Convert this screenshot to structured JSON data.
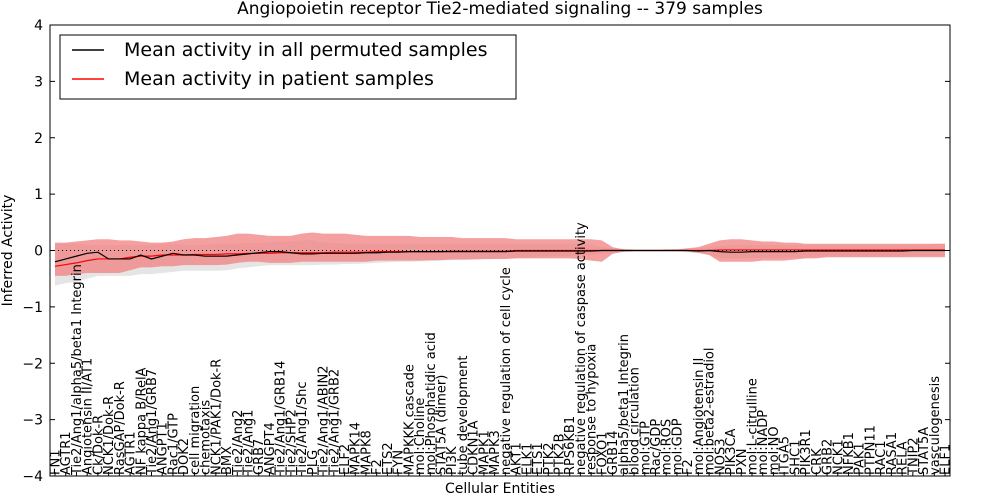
{
  "chart_data": {
    "type": "line",
    "title": "Angiopoietin receptor Tie2-mediated signaling -- 379 samples",
    "xlabel": "Cellular Entities",
    "ylabel": "Inferred Activity",
    "ylim": [
      -4,
      4
    ],
    "yticks": [
      -4,
      -3,
      -2,
      -1,
      0,
      1,
      2,
      3,
      4
    ],
    "zero_line": 0,
    "legend": {
      "position": "top-left",
      "entries": [
        {
          "label": "Mean activity in all permuted samples",
          "color": "#000000"
        },
        {
          "label": "Mean activity in patient samples",
          "color": "#ff0000"
        }
      ]
    },
    "colors": {
      "permuted_band": "#d3d3d3",
      "patient_band": "#f08080",
      "permuted_line": "#000000",
      "patient_line": "#ff0000"
    },
    "categories": [
      "FN1",
      "AGTR1",
      "Tie2/Ang1/alpha5/beta1 Integrin",
      "Angiotensin II/AT1",
      "Ck/Dok-R",
      "NCK1/Dok-R",
      "RasGAP/Dok-R",
      "AGTR1",
      "NF kappa B/RelA",
      "Tie2/Ang1/GRB7",
      "ANGPT1",
      "Rac1/GTP",
      "DOK2",
      "cell migration",
      "chemotaxis",
      "NCK1/PAK1/Dok-R",
      "BMX",
      "Tie2/Ang2",
      "Tie2/Ang1",
      "GRB7",
      "ANGPT4",
      "Tie2/Ang1/GRB14",
      "Tie2/SHP2",
      "Tie2/Ang1/Shc",
      "PLG",
      "Tie2/Ang1/ABIN2",
      "Tie2/Ang1/GRB2",
      "ELF2",
      "MAPK14",
      "MAPK8",
      "F2",
      "ETS2",
      "FYN",
      "MAPKKK cascade",
      "mol:Choline",
      "mol:Phosphatidic acid",
      "STAT5A (dimer)",
      "PI3K",
      "tube development",
      "CDKN1A",
      "MAPK1",
      "MAPK3",
      "negative regulation of cell cycle",
      "AKT1",
      "ELK1",
      "ETS1",
      "PTK2",
      "PTK2B",
      "RPS6KB1",
      "negative regulation of caspase activity",
      "response to hypoxia",
      "FOXO1",
      "GRB14",
      "alpha5/beta1 Integrin",
      "blood circulation",
      "mol:GTP",
      "Rac/GDP",
      "mol:ROS",
      "mol:GDP",
      "F2",
      "mol:Angiotensin II",
      "mol:beta2-estradiol",
      "NOS3",
      "PIK3CA",
      "PXN",
      "mol:L-citrulline",
      "mol:NADP",
      "mol:NO",
      "ITGA5",
      "SHC1",
      "PIK3R1",
      "CRK",
      "GRB2",
      "NCK1",
      "NFKB1",
      "PAK1",
      "PTPN11",
      "RAC1",
      "RASA1",
      "RELA",
      "TNIP2",
      "STAT5A",
      "vasculogenesis",
      "ELF1"
    ],
    "series": [
      {
        "name": "Mean activity in all permuted samples",
        "band": "permuted",
        "values": [
          -0.2,
          -0.15,
          -0.1,
          -0.05,
          -0.03,
          -0.15,
          -0.15,
          -0.15,
          -0.08,
          -0.15,
          -0.1,
          -0.05,
          -0.08,
          -0.08,
          -0.1,
          -0.1,
          -0.1,
          -0.08,
          -0.06,
          -0.04,
          -0.02,
          -0.02,
          -0.04,
          -0.06,
          -0.06,
          -0.05,
          -0.05,
          -0.05,
          -0.05,
          -0.04,
          -0.04,
          -0.03,
          -0.03,
          -0.02,
          -0.02,
          -0.02,
          -0.02,
          -0.02,
          -0.02,
          -0.02,
          -0.02,
          -0.02,
          -0.02,
          -0.01,
          -0.01,
          -0.01,
          -0.01,
          -0.01,
          -0.01,
          -0.01,
          -0.01,
          0,
          0,
          0,
          0,
          0,
          0,
          0,
          0,
          0,
          -0.01,
          0,
          -0.02,
          -0.03,
          -0.03,
          -0.02,
          -0.02,
          -0.02,
          -0.02,
          -0.02,
          -0.01,
          -0.01,
          -0.01,
          -0.01,
          -0.01,
          -0.01,
          -0.01,
          -0.01,
          -0.01,
          -0.01,
          0,
          0,
          0,
          0
        ],
        "lower": [
          -0.62,
          -0.58,
          -0.55,
          -0.5,
          -0.45,
          -0.45,
          -0.45,
          -0.45,
          -0.42,
          -0.42,
          -0.4,
          -0.38,
          -0.36,
          -0.36,
          -0.36,
          -0.36,
          -0.35,
          -0.32,
          -0.3,
          -0.28,
          -0.26,
          -0.26,
          -0.26,
          -0.26,
          -0.26,
          -0.25,
          -0.25,
          -0.24,
          -0.24,
          -0.23,
          -0.22,
          -0.21,
          -0.2,
          -0.2,
          -0.19,
          -0.19,
          -0.18,
          -0.17,
          -0.17,
          -0.16,
          -0.16,
          -0.15,
          -0.14,
          -0.13,
          -0.12,
          -0.11,
          -0.1,
          -0.1,
          -0.1,
          -0.1,
          -0.08,
          -0.06,
          -0.04,
          -0.03,
          -0.02,
          -0.02,
          -0.02,
          -0.02,
          -0.02,
          -0.03,
          -0.05,
          -0.08,
          -0.13,
          -0.14,
          -0.14,
          -0.13,
          -0.13,
          -0.13,
          -0.13,
          -0.12,
          -0.12,
          -0.11,
          -0.11,
          -0.11,
          -0.11,
          -0.11,
          -0.11,
          -0.11,
          -0.11,
          -0.11,
          -0.1,
          -0.1,
          -0.1,
          -0.1
        ],
        "upper": [
          0.12,
          0.12,
          0.12,
          0.1,
          0.1,
          0.1,
          0.1,
          0.1,
          0.1,
          0.1,
          0.12,
          0.12,
          0.1,
          0.1,
          0.1,
          0.12,
          0.12,
          0.12,
          0.14,
          0.14,
          0.14,
          0.16,
          0.16,
          0.18,
          0.18,
          0.14,
          0.14,
          0.12,
          0.12,
          0.12,
          0.12,
          0.12,
          0.12,
          0.12,
          0.12,
          0.12,
          0.12,
          0.12,
          0.12,
          0.12,
          0.12,
          0.12,
          0.12,
          0.12,
          0.12,
          0.12,
          0.12,
          0.12,
          0.12,
          0.12,
          0.1,
          0.06,
          0.04,
          0.03,
          0.02,
          0.02,
          0.02,
          0.02,
          0.02,
          0.03,
          0.04,
          0.06,
          0.08,
          0.09,
          0.1,
          0.1,
          0.1,
          0.1,
          0.1,
          0.1,
          0.1,
          0.1,
          0.1,
          0.1,
          0.1,
          0.1,
          0.1,
          0.1,
          0.1,
          0.1,
          0.1,
          0.1,
          0.12,
          0.12
        ]
      },
      {
        "name": "Mean activity in patient samples",
        "band": "patient",
        "values": [
          -0.28,
          -0.25,
          -0.22,
          -0.18,
          -0.15,
          -0.15,
          -0.15,
          -0.12,
          -0.1,
          -0.1,
          -0.08,
          -0.08,
          -0.08,
          -0.07,
          -0.07,
          -0.07,
          -0.06,
          -0.06,
          -0.05,
          -0.05,
          -0.05,
          -0.04,
          -0.04,
          -0.04,
          -0.04,
          -0.04,
          -0.03,
          -0.03,
          -0.03,
          -0.03,
          -0.02,
          -0.02,
          -0.02,
          -0.02,
          -0.02,
          -0.02,
          -0.02,
          -0.01,
          -0.01,
          -0.01,
          -0.01,
          -0.01,
          -0.01,
          0,
          0,
          0,
          0,
          0,
          0,
          0,
          0,
          0,
          0,
          0,
          0,
          0,
          0,
          0,
          0,
          0,
          0,
          0,
          0.01,
          0.01,
          0.01,
          0.01,
          0.01,
          0.01,
          0.01,
          0.01,
          0.01,
          0.01,
          0.01,
          0.01,
          0.01,
          0.01,
          0.01,
          0.01,
          0.01,
          0.01,
          0.01,
          0.01,
          0.01,
          0.01
        ],
        "lower": [
          -0.45,
          -0.45,
          -0.42,
          -0.4,
          -0.4,
          -0.4,
          -0.4,
          -0.35,
          -0.3,
          -0.3,
          -0.28,
          -0.28,
          -0.26,
          -0.26,
          -0.26,
          -0.26,
          -0.25,
          -0.22,
          -0.2,
          -0.2,
          -0.22,
          -0.22,
          -0.22,
          -0.2,
          -0.2,
          -0.2,
          -0.2,
          -0.2,
          -0.2,
          -0.2,
          -0.18,
          -0.18,
          -0.18,
          -0.18,
          -0.18,
          -0.17,
          -0.17,
          -0.16,
          -0.16,
          -0.16,
          -0.15,
          -0.15,
          -0.15,
          -0.14,
          -0.14,
          -0.14,
          -0.14,
          -0.14,
          -0.14,
          -0.15,
          -0.18,
          -0.2,
          -0.06,
          -0.02,
          -0.01,
          0,
          0,
          0,
          0,
          -0.02,
          -0.04,
          -0.08,
          -0.2,
          -0.2,
          -0.2,
          -0.2,
          -0.18,
          -0.18,
          -0.18,
          -0.16,
          -0.14,
          -0.14,
          -0.12,
          -0.12,
          -0.12,
          -0.12,
          -0.12,
          -0.12,
          -0.12,
          -0.12,
          -0.12,
          -0.12,
          -0.12,
          -0.12
        ],
        "upper": [
          0.14,
          0.14,
          0.16,
          0.18,
          0.2,
          0.2,
          0.18,
          0.18,
          0.16,
          0.14,
          0.14,
          0.16,
          0.2,
          0.22,
          0.22,
          0.24,
          0.26,
          0.3,
          0.3,
          0.28,
          0.26,
          0.26,
          0.26,
          0.3,
          0.32,
          0.3,
          0.3,
          0.3,
          0.28,
          0.26,
          0.26,
          0.26,
          0.26,
          0.26,
          0.24,
          0.24,
          0.24,
          0.24,
          0.22,
          0.22,
          0.22,
          0.22,
          0.22,
          0.2,
          0.2,
          0.2,
          0.2,
          0.2,
          0.2,
          0.2,
          0.2,
          0.18,
          0.06,
          0.02,
          0.01,
          0,
          0,
          0.02,
          0.02,
          0.04,
          0.06,
          0.12,
          0.18,
          0.2,
          0.2,
          0.18,
          0.16,
          0.16,
          0.14,
          0.14,
          0.12,
          0.12,
          0.12,
          0.12,
          0.12,
          0.12,
          0.12,
          0.12,
          0.12,
          0.12,
          0.12,
          0.12,
          0.12,
          0.12
        ]
      }
    ]
  }
}
